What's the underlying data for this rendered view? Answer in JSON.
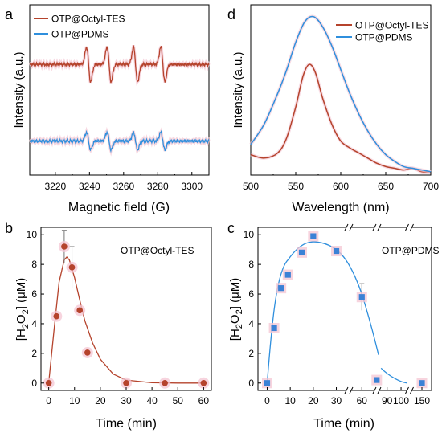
{
  "colors": {
    "series_a": "#b5432c",
    "series_b": "#2f8fdd",
    "series_b_fill": "#3b82d6",
    "pale_glow": "#f4c6d3",
    "axis": "#000000"
  },
  "chart_data": [
    {
      "panel": "a",
      "type": "line",
      "xlabel": "Magnetic field (G)",
      "ylabel": "Intensity (a.u.)",
      "xlim": [
        3205,
        3310
      ],
      "xticks": [
        "3220",
        "3240",
        "3260",
        "3280",
        "3300"
      ],
      "legend_position": "top",
      "series": [
        {
          "name": "OTP@Octyl-TES",
          "baseline": 0.65,
          "amplitude": 0.22,
          "lines_at": [
            3239.5,
            3251.5,
            3267,
            3283
          ]
        },
        {
          "name": "OTP@PDMS",
          "baseline": 0.2,
          "amplitude": 0.11,
          "lines_at": [
            3239.5,
            3251.5,
            3267,
            3283
          ]
        }
      ]
    },
    {
      "panel": "d",
      "type": "line",
      "xlabel": "Wavelength (nm)",
      "ylabel": "Intensity (a.u.)",
      "xlim": [
        500,
        700
      ],
      "xticks": [
        "500",
        "550",
        "600",
        "650",
        "700"
      ],
      "legend_position": "top-right",
      "series": [
        {
          "name": "OTP@Octyl-TES",
          "x": [
            500,
            515,
            530,
            540,
            550,
            558,
            565,
            572,
            580,
            590,
            600,
            610,
            620,
            630,
            640,
            650,
            660,
            670,
            680,
            690,
            700
          ],
          "y": [
            0.12,
            0.1,
            0.13,
            0.22,
            0.4,
            0.58,
            0.65,
            0.6,
            0.45,
            0.3,
            0.2,
            0.16,
            0.13,
            0.1,
            0.07,
            0.05,
            0.04,
            0.03,
            0.04,
            0.02,
            0.02
          ]
        },
        {
          "name": "OTP@PDMS",
          "x": [
            500,
            515,
            530,
            540,
            550,
            560,
            570,
            580,
            590,
            600,
            610,
            620,
            630,
            640,
            650,
            660,
            670,
            680,
            690,
            700
          ],
          "y": [
            0.18,
            0.3,
            0.48,
            0.62,
            0.78,
            0.9,
            0.93,
            0.87,
            0.76,
            0.62,
            0.48,
            0.36,
            0.26,
            0.18,
            0.12,
            0.08,
            0.05,
            0.04,
            0.03,
            0.02
          ]
        }
      ]
    },
    {
      "panel": "b",
      "type": "scatter",
      "annotation": "OTP@Octyl-TES",
      "xlabel": "Time (min)",
      "ylabel": "[H₂O₂] (μM)",
      "xlim": [
        -3,
        63
      ],
      "ylim": [
        -0.5,
        10.5
      ],
      "xticks": [
        "0",
        "10",
        "20",
        "30",
        "40",
        "50",
        "60"
      ],
      "yticks": [
        "0",
        "2",
        "4",
        "6",
        "8",
        "10"
      ],
      "x": [
        0,
        3,
        6,
        9,
        12,
        15,
        30,
        45,
        60
      ],
      "y": [
        0,
        4.5,
        9.2,
        7.8,
        4.9,
        2.05,
        0,
        0,
        0
      ],
      "error_bars": [
        {
          "x": 6,
          "err": 1.1
        },
        {
          "x": 9,
          "err": 1.4
        }
      ],
      "fit": {
        "x": [
          0,
          2,
          4,
          6,
          7,
          8,
          10,
          12,
          14,
          17,
          20,
          25,
          30,
          40,
          50,
          60
        ],
        "y": [
          0,
          3.5,
          6.8,
          8.3,
          8.5,
          8.3,
          7.1,
          5.6,
          4.2,
          2.7,
          1.6,
          0.6,
          0.2,
          0.02,
          0,
          0
        ]
      }
    },
    {
      "panel": "c",
      "type": "scatter",
      "annotation": "OTP@PDMS",
      "xlabel": "Time (min)",
      "ylabel": "[H₂O₂] (μM)",
      "ylim": [
        -0.5,
        10.5
      ],
      "xtick_labels": [
        "0",
        "10",
        "20",
        "30",
        "60",
        "90",
        "100",
        "150"
      ],
      "yticks": [
        "0",
        "2",
        "4",
        "6",
        "8",
        "10"
      ],
      "axis_breaks": [
        "between 30 and 60",
        "between 60 and 90",
        "between 100 and 150"
      ],
      "x": [
        0,
        3,
        6,
        9,
        15,
        20,
        30,
        60,
        75,
        150
      ],
      "y": [
        0,
        3.7,
        6.4,
        7.3,
        8.8,
        9.9,
        8.9,
        5.8,
        0.2,
        0
      ],
      "error_bars": [
        {
          "x": 60,
          "err": 0.9
        }
      ]
    }
  ],
  "panel_letters": {
    "a": "a",
    "b": "b",
    "c": "c",
    "d": "d"
  },
  "legend_top": {
    "a": "OTP@Octyl-TES",
    "b": "OTP@PDMS"
  },
  "legend_right": {
    "a": "OTP@Octyl-TES",
    "b": "OTP@PDMS"
  },
  "panel_a": {
    "ylabel": "Intensity (a.u.)",
    "xlabel": "Magnetic field (G)",
    "ticks": [
      "3220",
      "3240",
      "3260",
      "3280",
      "3300"
    ]
  },
  "panel_d": {
    "ylabel": "Intensity (a.u.)",
    "xlabel": "Wavelength (nm)",
    "ticks": [
      "500",
      "550",
      "600",
      "650",
      "700"
    ]
  },
  "panel_b": {
    "ylabel_pre": "[H",
    "ylabel_sub1": "2",
    "ylabel_mid": "O",
    "ylabel_sub2": "2",
    "ylabel_post": "] (μM)",
    "xlabel": "Time (min)",
    "annotation": "OTP@Octyl-TES",
    "xticks": [
      "0",
      "10",
      "20",
      "30",
      "40",
      "50",
      "60"
    ],
    "yticks": [
      "0",
      "2",
      "4",
      "6",
      "8",
      "10"
    ]
  },
  "panel_c": {
    "ylabel_pre": "[H",
    "ylabel_sub1": "2",
    "ylabel_mid": "O",
    "ylabel_sub2": "2",
    "ylabel_post": "] (μM)",
    "xlabel": "Time (min)",
    "annotation": "OTP@PDMS",
    "xticks": [
      "0",
      "10",
      "20",
      "30",
      "60",
      "90",
      "100",
      "150"
    ],
    "yticks": [
      "0",
      "2",
      "4",
      "6",
      "8",
      "10"
    ]
  }
}
